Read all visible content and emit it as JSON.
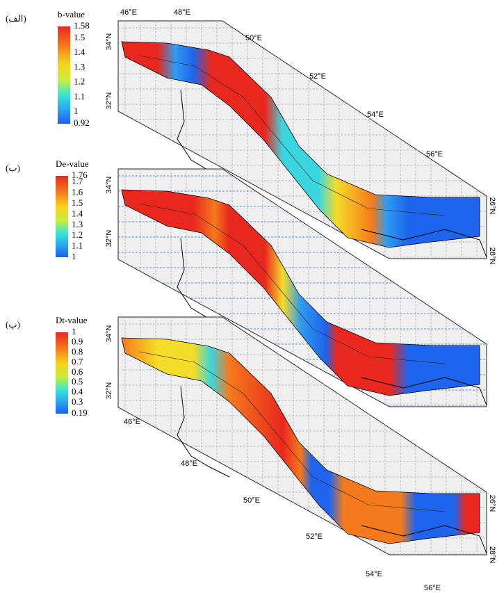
{
  "panels": [
    {
      "label": "(الف)",
      "colorbar": {
        "title": "b-value",
        "ticks": [
          "1.58",
          "1.5",
          "1.4",
          "1.3",
          "1.2",
          "1.1",
          "1",
          "0.92"
        ]
      },
      "coordinates": [
        "46°E",
        "48°E",
        "50°E",
        "52°E",
        "54°E",
        "56°E",
        "34°N",
        "32°N"
      ]
    },
    {
      "label": "(ب)",
      "colorbar": {
        "title": "De-value",
        "ticks": [
          "1.76",
          "1.7",
          "1.6",
          "1.5",
          "1.4",
          "1.3",
          "1.2",
          "1.1",
          "1"
        ]
      },
      "coordinates": [
        "34°N",
        "32°N",
        "26°N",
        "28°N"
      ]
    },
    {
      "label": "(پ)",
      "colorbar": {
        "title": "Dt-value",
        "ticks": [
          "1",
          "0.9",
          "0.8",
          "0.7",
          "0.6",
          "0.5",
          "0.4",
          "0.3",
          "0.19"
        ]
      },
      "coordinates": [
        "34°N",
        "32°N",
        "46°E",
        "48°E",
        "50°E",
        "52°E",
        "54°E",
        "56°E",
        "26°N",
        "28°N"
      ]
    }
  ]
}
